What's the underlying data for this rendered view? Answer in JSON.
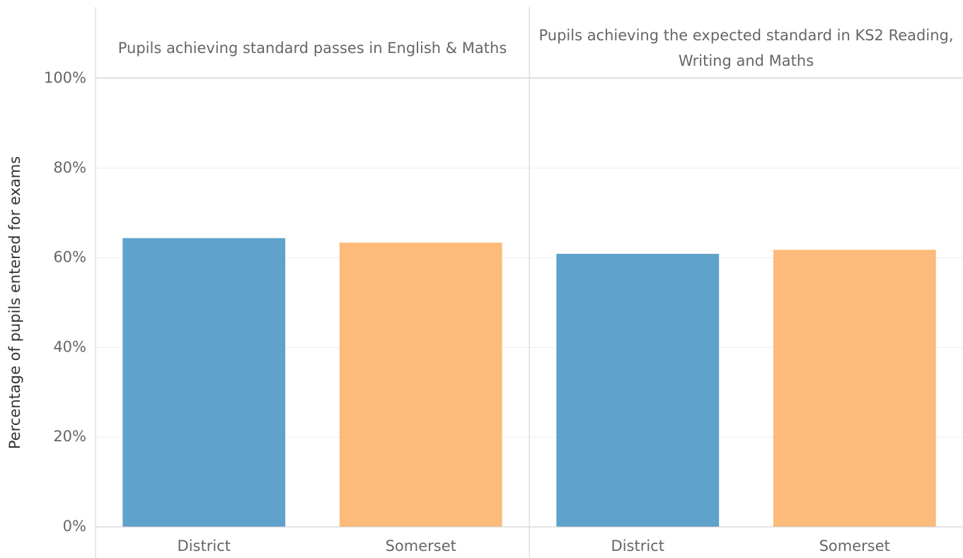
{
  "chart_data": {
    "type": "bar",
    "y_label": "Percentage of pupils entered for exams",
    "categories": [
      "District",
      "Somerset"
    ],
    "colors": [
      "#5fa2cc",
      "#fcbb7a"
    ],
    "panels": [
      {
        "title": "Pupils achieving standard passes in English & Maths",
        "values": [
          64.4,
          63.4
        ]
      },
      {
        "title": "Pupils achieving the expected standard in KS2 Reading, Writing and Maths",
        "values": [
          60.9,
          61.8
        ]
      }
    ],
    "ylim": [
      0,
      100
    ],
    "yticks": [
      {
        "value": 0,
        "label": "0%"
      },
      {
        "value": 20,
        "label": "20%"
      },
      {
        "value": 40,
        "label": "40%"
      },
      {
        "value": 60,
        "label": "60%"
      },
      {
        "value": 80,
        "label": "80%"
      },
      {
        "value": 100,
        "label": "100%"
      }
    ],
    "grid": true
  }
}
